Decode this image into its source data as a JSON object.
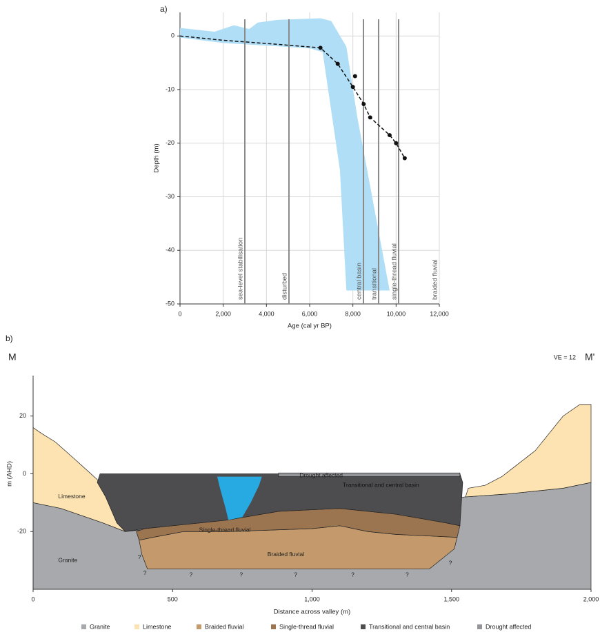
{
  "chart_data": [
    {
      "type": "line",
      "panel_label": "a)",
      "xlabel": "Age (cal yr BP)",
      "ylabel": "Depth (m)",
      "xlim": [
        0,
        12000
      ],
      "ylim": [
        -50,
        4.4
      ],
      "xticks": [
        0,
        {
          "value": 2000,
          "label": "2,000"
        },
        {
          "value": 4000,
          "label": "4,000"
        },
        {
          "value": 6000,
          "label": "6,000"
        },
        {
          "value": 8000,
          "label": "8,000"
        },
        {
          "value": 10000,
          "label": "10,000"
        },
        {
          "value": 12000,
          "label": "12,000"
        }
      ],
      "yticks": [
        0,
        -10,
        -20,
        -30,
        -40,
        -50
      ],
      "grid": true,
      "band": {
        "color": "#b0def6",
        "x": [
          0,
          1600,
          2500,
          3200,
          3600,
          4500,
          6500,
          7000,
          7700,
          8200,
          9700,
          7700,
          7400,
          6600,
          6000,
          2000,
          0
        ],
        "y": [
          1.5,
          0.8,
          2,
          1.3,
          2.5,
          3,
          3.3,
          2.8,
          -2,
          -15,
          -47.5,
          -47.5,
          -25,
          -3,
          -2.3,
          -1.3,
          -0.3
        ]
      },
      "trend": {
        "color": "#111",
        "x": [
          0,
          2000,
          4000,
          6500,
          7300,
          8000,
          8500,
          8800,
          9700,
          10000,
          10400
        ],
        "values": [
          0,
          -0.8,
          -1.4,
          -2.2,
          -5.2,
          -9.5,
          -12.7,
          -15.2,
          -18.5,
          -20,
          -22.8
        ]
      },
      "points": {
        "color": "#111",
        "x": [
          6500,
          7300,
          8100,
          8000,
          8500,
          8800,
          9700,
          10000,
          10400
        ],
        "values": [
          -2.2,
          -5.2,
          -7.5,
          -9.5,
          -12.7,
          -15.2,
          -18.5,
          -20,
          -22.8
        ]
      },
      "phases": [
        {
          "label": "sea-level stabilisation",
          "x": 3000,
          "line": true
        },
        {
          "label": "disturbed",
          "x": 5043,
          "line": true
        },
        {
          "label": "central basin",
          "x": 8490,
          "line": true
        },
        {
          "label": "transitional",
          "x": 9191,
          "line": true
        },
        {
          "label": "single-thread fluvial",
          "x": 10117,
          "line": true
        },
        {
          "label": "braided fluvial",
          "x": 12000,
          "line": false
        }
      ]
    },
    {
      "type": "section",
      "panel_label": "b)",
      "left_label": "M",
      "right_label": "M'",
      "note": "VE = 12",
      "xlabel": "Distance across valley (m)",
      "ylabel": "m (AHD)",
      "xlim": [
        0,
        2000
      ],
      "ylim": [
        -40,
        34
      ],
      "xticks": [
        0,
        500,
        {
          "value": 1000,
          "label": "1,000"
        },
        {
          "value": 1500,
          "label": "1,500"
        },
        {
          "value": 2000,
          "label": "2,000"
        }
      ],
      "yticks": [
        20,
        0,
        -20
      ],
      "series": [
        {
          "name": "Granite",
          "color": "#a7a9ac",
          "parts": [
            {
              "x": [
                0,
                100,
                250,
                330,
                1550,
                1700,
                1900,
                2000,
                2000,
                0
              ],
              "y": [
                -10,
                -12,
                -17,
                -20,
                -8,
                -7,
                -5,
                -3,
                -40,
                -40
              ]
            }
          ]
        },
        {
          "name": "Limestone",
          "color": "#fde3b1",
          "parts": [
            {
              "x": [
                0,
                30,
                80,
                150,
                230,
                280,
                330,
                250,
                100,
                0
              ],
              "y": [
                16,
                14,
                11,
                5,
                -2,
                -10,
                -20,
                -17,
                -12,
                -10
              ]
            },
            {
              "x": [
                1550,
                1560,
                1620,
                1680,
                1720,
                1800,
                1900,
                1960,
                2000,
                2000,
                1900,
                1700
              ],
              "y": [
                -8,
                -5,
                -4,
                -1,
                2,
                8,
                20,
                24,
                24,
                -3,
                -5,
                -7
              ]
            }
          ]
        },
        {
          "name": "Braided fluvial",
          "color": "#c49a6c",
          "parts": [
            {
              "x": [
                380,
                430,
                540,
                700,
                1000,
                1100,
                1200,
                1300,
                1520,
                1510,
                1420,
                410,
                390
              ],
              "y": [
                -23,
                -22,
                -20,
                -20,
                -19,
                -18,
                -20,
                -21,
                -22,
                -26,
                -33,
                -33,
                -28
              ]
            }
          ]
        },
        {
          "name": "Single-thread fluvial",
          "color": "#9b7450",
          "parts": [
            {
              "x": [
                370,
                400,
                500,
                700,
                880,
                1100,
                1300,
                1480,
                1530,
                1520,
                1300,
                1200,
                1100,
                1000,
                700,
                540,
                430,
                380
              ],
              "y": [
                -20,
                -19,
                -18,
                -16,
                -13,
                -12,
                -14,
                -17,
                -18,
                -22,
                -21,
                -20,
                -18,
                -19,
                -20,
                -20,
                -22,
                -23
              ]
            }
          ]
        },
        {
          "name": "Transitional and central basin",
          "color": "#4d4d4f",
          "parts": [
            {
              "x": [
                240,
                1530,
                1540,
                1530,
                1480,
                1300,
                1100,
                880,
                820,
                700,
                600,
                500,
                400,
                330,
                300,
                260,
                230
              ],
              "y": [
                0,
                0,
                -3,
                -18,
                -17,
                -14,
                -12,
                -13,
                -14,
                -16,
                -17,
                -18,
                -19,
                -20,
                -17,
                -8,
                -3
              ]
            }
          ]
        },
        {
          "name": "Drought affected",
          "color": "#939598",
          "parts": [
            {
              "x": [
                880,
                1530,
                1530,
                880
              ],
              "y": [
                0.3,
                0.3,
                -1,
                -1
              ]
            }
          ]
        }
      ],
      "water": {
        "color": "#27a9e1",
        "x": [
          660,
          820,
          810,
          780,
          750,
          700,
          690,
          670
        ],
        "y": [
          -1,
          -1,
          -4,
          -10,
          -15,
          -16,
          -12,
          -5
        ]
      },
      "annotations": [
        {
          "text": "Limestone",
          "x": 90,
          "y": -8,
          "color": "#222"
        },
        {
          "text": "Granite",
          "x": 90,
          "y": -30,
          "color": "#222"
        },
        {
          "text": "Braided fluvial",
          "x": 840,
          "y": -28,
          "color": "#222"
        },
        {
          "text": "Single-thread fluvial",
          "x": 595,
          "y": -19.5,
          "color": "#222"
        },
        {
          "text": "Transitional and  central   basin",
          "x": 1110,
          "y": -4,
          "color": "#111"
        },
        {
          "text": "Drought affected",
          "x": 955,
          "y": -0.7,
          "color": "#222"
        },
        {
          "text": "?",
          "x": 375,
          "y": -29,
          "color": "#222"
        },
        {
          "text": "?",
          "x": 395,
          "y": -34.5,
          "color": "#222"
        },
        {
          "text": "?",
          "x": 560,
          "y": -35,
          "color": "#222"
        },
        {
          "text": "?",
          "x": 740,
          "y": -35,
          "color": "#222"
        },
        {
          "text": "?",
          "x": 935,
          "y": -35,
          "color": "#222"
        },
        {
          "text": "?",
          "x": 1140,
          "y": -35,
          "color": "#222"
        },
        {
          "text": "?",
          "x": 1335,
          "y": -35,
          "color": "#222"
        },
        {
          "text": "?",
          "x": 1490,
          "y": -31,
          "color": "#222"
        }
      ]
    }
  ]
}
